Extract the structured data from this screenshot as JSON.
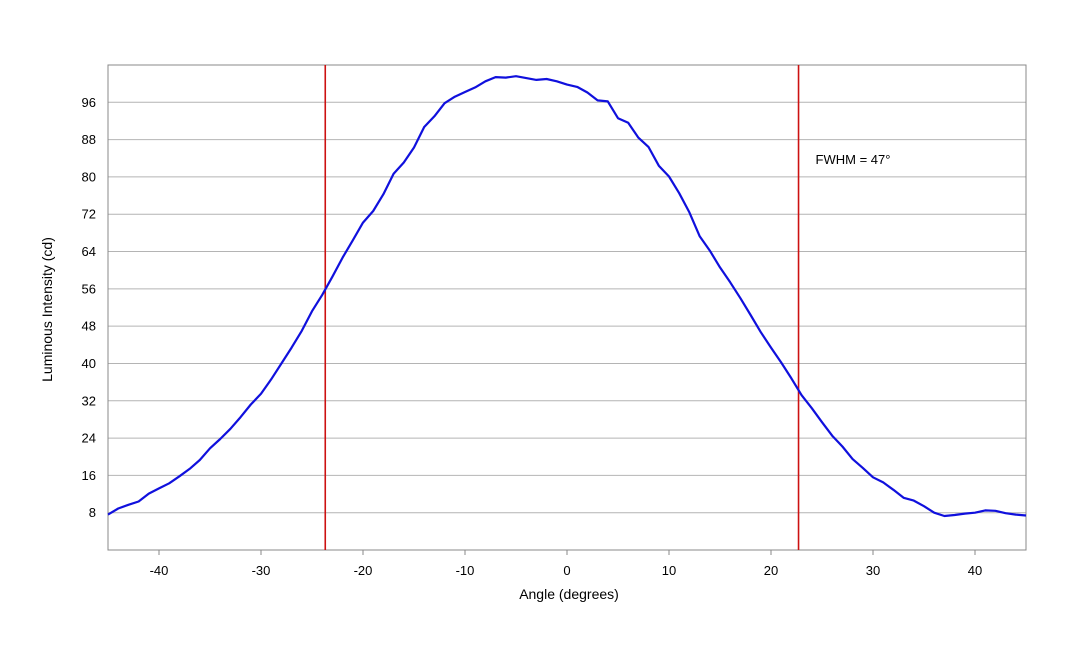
{
  "chart_data": {
    "type": "line",
    "title": "",
    "xlabel": "Angle (degrees)",
    "ylabel": "Luminous Intensity (cd)",
    "xlim": [
      -45,
      45
    ],
    "ylim": [
      0,
      104
    ],
    "x_ticks": [
      -40,
      -30,
      -20,
      -10,
      0,
      10,
      20,
      30,
      40
    ],
    "y_ticks": [
      8,
      16,
      24,
      32,
      40,
      48,
      56,
      64,
      72,
      80,
      88,
      96
    ],
    "grid": "horizontal",
    "legend": "none",
    "series": [
      {
        "color": "#1010dd",
        "x": [
          -45,
          -44,
          -43,
          -42,
          -41,
          -40,
          -39,
          -38,
          -37,
          -36,
          -35,
          -34,
          -33,
          -32,
          -31,
          -30,
          -29,
          -28,
          -27,
          -26,
          -25,
          -24,
          -23,
          -22,
          -21,
          -20,
          -19,
          -18,
          -17,
          -16,
          -15,
          -14,
          -13,
          -12,
          -11,
          -10,
          -9,
          -8,
          -7,
          -6,
          -5,
          -4,
          -3,
          -2,
          -1,
          0,
          1,
          2,
          3,
          4,
          5,
          6,
          7,
          8,
          9,
          10,
          11,
          12,
          13,
          14,
          15,
          16,
          17,
          18,
          19,
          20,
          21,
          22,
          23,
          24,
          25,
          26,
          27,
          28,
          29,
          30,
          31,
          32,
          33,
          34,
          35,
          36,
          37,
          38,
          39,
          40,
          41,
          42,
          43,
          44,
          45
        ],
        "y": [
          7.6,
          8.9,
          9.7,
          10.4,
          12.1,
          13.2,
          14.3,
          15.8,
          17.4,
          19.3,
          21.8,
          23.8,
          26.0,
          28.5,
          31.2,
          33.5,
          36.6,
          40.0,
          43.4,
          47.0,
          51.2,
          54.7,
          58.6,
          62.7,
          66.4,
          70.2,
          72.7,
          76.3,
          80.7,
          83.1,
          86.3,
          90.7,
          93.0,
          95.8,
          97.2,
          98.2,
          99.2,
          100.5,
          101.4,
          101.3,
          101.6,
          101.2,
          100.8,
          101.0,
          100.5,
          99.8,
          99.3,
          98.1,
          96.4,
          96.2,
          92.6,
          91.6,
          88.4,
          86.4,
          82.4,
          80.1,
          76.5,
          72.4,
          67.3,
          64.2,
          60.6,
          57.4,
          54.0,
          50.4,
          46.7,
          43.4,
          40.2,
          36.8,
          33.2,
          30.4,
          27.4,
          24.5,
          22.2,
          19.5,
          17.6,
          15.6,
          14.5,
          12.9,
          11.2,
          10.6,
          9.4,
          8.0,
          7.3,
          7.5,
          7.8,
          8.0,
          8.5,
          8.4,
          7.9,
          7.6,
          7.4
        ]
      }
    ],
    "vertical_lines": [
      {
        "x": -23.7,
        "color": "#cc1111"
      },
      {
        "x": 22.7,
        "color": "#cc1111"
      }
    ],
    "annotation": "FWHM = 47°"
  }
}
